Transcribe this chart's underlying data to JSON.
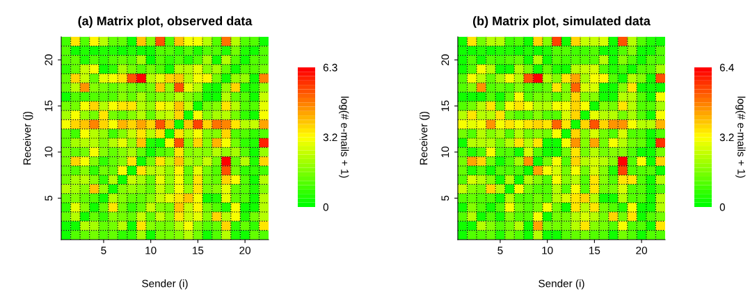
{
  "chart_data": [
    {
      "type": "heatmap",
      "title": "(a) Matrix plot, observed data",
      "xlabel": "Sender (i)",
      "ylabel": "Receiver (j)",
      "clabel": "log(# e-mails + 1)",
      "x": [
        1,
        2,
        3,
        4,
        5,
        6,
        7,
        8,
        9,
        10,
        11,
        12,
        13,
        14,
        15,
        16,
        17,
        18,
        19,
        20,
        21,
        22
      ],
      "y": [
        22,
        21,
        20,
        19,
        18,
        17,
        16,
        15,
        14,
        13,
        12,
        11,
        10,
        9,
        8,
        7,
        6,
        5,
        4,
        3,
        2,
        1
      ],
      "xlim": [
        0.5,
        22.5
      ],
      "ylim": [
        0.5,
        22.5
      ],
      "xticks": [
        5,
        10,
        15,
        20
      ],
      "yticks": [
        5,
        10,
        15,
        20
      ],
      "clim": [
        0,
        6.3
      ],
      "cticks": [
        0,
        {
          "value": 3.15,
          "label": "3.2"
        },
        6.3
      ],
      "colors": [
        "#00ff00",
        "#ffff00",
        "#ff0000"
      ],
      "line_style": "dotted",
      "cells": [
        [
          0.8,
          3.5,
          1,
          3.2,
          2.3,
          1.2,
          1.2,
          0.3,
          3.8,
          1.6,
          5.3,
          1,
          3.8,
          3,
          3,
          2.3,
          1,
          4.8,
          2.3,
          1,
          1,
          0.3
        ],
        [
          1,
          0.3,
          0.5,
          0.3,
          0.5,
          0.5,
          0.3,
          0.5,
          0.3,
          0.3,
          1,
          1,
          0.7,
          1,
          0.5,
          1,
          1,
          0.5,
          1.5,
          0.5,
          0.3,
          1
        ],
        [
          1,
          1.3,
          0.5,
          1,
          0.7,
          1,
          1.3,
          1,
          2,
          0,
          1,
          0.7,
          1,
          0.5,
          1,
          2,
          0.2,
          2.3,
          1,
          0.3,
          1,
          1
        ],
        [
          0.6,
          1.3,
          2.5,
          3,
          0.2,
          0.7,
          2,
          1.5,
          1,
          1.5,
          1,
          0.2,
          2.3,
          2.3,
          2.8,
          1.6,
          2,
          1.2,
          0.3,
          1,
          1,
          1.5
        ],
        [
          1.3,
          3.6,
          2.5,
          1.2,
          2.8,
          3,
          3.5,
          5.2,
          6.3,
          2.3,
          2.8,
          3.6,
          3.8,
          2.3,
          3,
          3.2,
          1.5,
          0.3,
          1.8,
          1.8,
          0.3,
          4.6
        ],
        [
          1.2,
          2.3,
          4.5,
          1.6,
          1.5,
          1.2,
          1.6,
          1.5,
          1.2,
          1.5,
          3.8,
          1.8,
          5.3,
          2.8,
          2.3,
          0.5,
          0.3,
          1.8,
          3.6,
          0.5,
          0.5,
          1.8
        ],
        [
          0.2,
          1,
          0.8,
          1,
          1,
          1,
          1.6,
          1.3,
          2,
          1.2,
          1.6,
          1.6,
          2.3,
          1.6,
          1.2,
          0.2,
          0.3,
          2.3,
          1.2,
          1,
          0.3,
          2.5
        ],
        [
          1.4,
          1.5,
          3,
          3.6,
          2.3,
          3,
          3.5,
          3.4,
          2.2,
          1.8,
          3.2,
          2.9,
          3.8,
          2.5,
          0.2,
          1.5,
          1.6,
          3.5,
          2.3,
          1,
          1,
          2.8
        ],
        [
          2,
          3,
          1.8,
          1.5,
          3.5,
          1.4,
          1.2,
          1.6,
          2.2,
          1.2,
          2.3,
          2.4,
          3.6,
          0.2,
          3,
          1.6,
          2,
          2.3,
          1.5,
          0.6,
          0.3,
          3
        ],
        [
          3,
          3.6,
          3.8,
          4.6,
          3.6,
          3,
          4,
          3.6,
          4.3,
          3.6,
          5.3,
          3.8,
          0.3,
          3.8,
          5.5,
          3.6,
          4.8,
          4.6,
          3.5,
          2.3,
          2.5,
          4.3
        ],
        [
          1.3,
          0.8,
          3,
          2.3,
          1.8,
          0.8,
          1.6,
          2.4,
          3.5,
          2.2,
          3.5,
          0.2,
          3.5,
          2.3,
          3,
          1.6,
          1.6,
          3.6,
          1,
          1,
          0.6,
          1
        ],
        [
          1.3,
          2,
          2.2,
          2.2,
          1.6,
          2.3,
          2.8,
          1.8,
          3.8,
          0.5,
          0.2,
          3,
          5.2,
          1.6,
          3.6,
          1.6,
          4,
          3,
          1.4,
          0.7,
          0.5,
          5.8
        ],
        [
          1.4,
          1.2,
          1.5,
          3,
          1.6,
          1.2,
          1.6,
          2,
          1.2,
          0.3,
          1,
          1.2,
          3.5,
          1.6,
          1.8,
          1.6,
          2.2,
          1.8,
          2,
          1,
          0.3,
          1.8
        ],
        [
          1.5,
          3.6,
          3,
          1.6,
          0.6,
          1.2,
          1.6,
          3.4,
          0.2,
          1.5,
          3.5,
          2.2,
          3.8,
          2,
          1.8,
          2.5,
          1.4,
          6.3,
          1.2,
          2.3,
          0.5,
          3.6
        ],
        [
          1.2,
          1,
          1.6,
          0.6,
          1.5,
          1.2,
          3,
          0.3,
          3.5,
          2.2,
          2.5,
          1.8,
          3.2,
          1.2,
          2.8,
          1.5,
          1,
          5.3,
          1.4,
          0.6,
          0.6,
          0.8
        ],
        [
          1.4,
          2,
          2.2,
          1.6,
          0.6,
          2.3,
          0.3,
          2.5,
          2,
          1.2,
          2.8,
          1.8,
          3,
          1.5,
          3.5,
          1.4,
          1.2,
          3.7,
          3,
          1,
          0.3,
          2.2
        ],
        [
          2.3,
          2,
          1.6,
          3.8,
          1.8,
          0.2,
          1.6,
          1.8,
          1.6,
          1.2,
          2.5,
          1.6,
          3,
          1.8,
          3.5,
          1.4,
          1.6,
          2.8,
          1.2,
          1,
          0.5,
          1.6
        ],
        [
          1.2,
          1.6,
          1.2,
          1,
          0.3,
          2.2,
          1.6,
          1.2,
          1.2,
          1.6,
          2.5,
          2.8,
          3.5,
          3.8,
          3,
          0.3,
          0.5,
          2.8,
          1.2,
          1,
          0.3,
          2.3
        ],
        [
          0.6,
          2.8,
          1.6,
          0.3,
          1.2,
          3.4,
          1.5,
          0.6,
          1.2,
          2.4,
          1.6,
          1.4,
          3.8,
          2.5,
          3.2,
          1.4,
          1,
          0.5,
          3,
          0.3,
          0.3,
          2.2
        ],
        [
          1.2,
          2.2,
          0.3,
          1.2,
          0.6,
          1.6,
          1.4,
          1.2,
          2.5,
          1.2,
          2.5,
          1.6,
          3.4,
          2.5,
          2.9,
          1.6,
          3.6,
          2.3,
          3,
          0.5,
          1.4,
          2.2
        ],
        [
          0.2,
          0.3,
          2.2,
          2,
          1.2,
          1.4,
          2.3,
          0.3,
          3.5,
          1.6,
          1.5,
          1.4,
          2.3,
          3,
          1.6,
          1,
          1.2,
          3.6,
          0.6,
          1.2,
          0.6,
          3.5
        ],
        [
          0.2,
          1,
          1.2,
          1.4,
          1,
          1.2,
          0.6,
          0.6,
          2,
          0.3,
          1.4,
          1.4,
          1.6,
          2.3,
          1.4,
          0.3,
          1,
          2.2,
          0.5,
          0.3,
          1.2,
          1
        ]
      ]
    },
    {
      "type": "heatmap",
      "title": "(b) Matrix plot, simulated data",
      "xlabel": "Sender (i)",
      "ylabel": "Receiver (j)",
      "clabel": "log(# e-mails + 1)",
      "x": [
        1,
        2,
        3,
        4,
        5,
        6,
        7,
        8,
        9,
        10,
        11,
        12,
        13,
        14,
        15,
        16,
        17,
        18,
        19,
        20,
        21,
        22
      ],
      "y": [
        22,
        21,
        20,
        19,
        18,
        17,
        16,
        15,
        14,
        13,
        12,
        11,
        10,
        9,
        8,
        7,
        6,
        5,
        4,
        3,
        2,
        1
      ],
      "xlim": [
        0.5,
        22.5
      ],
      "ylim": [
        0.5,
        22.5
      ],
      "xticks": [
        5,
        10,
        15,
        20
      ],
      "yticks": [
        5,
        10,
        15,
        20
      ],
      "clim": [
        0,
        6.4
      ],
      "cticks": [
        0,
        {
          "value": 3.2,
          "label": "3.2"
        },
        6.4
      ],
      "colors": [
        "#00ff00",
        "#ffff00",
        "#ff0000"
      ],
      "line_style": "dotted",
      "cells": [
        [
          0.2,
          3.5,
          1.5,
          2.3,
          2.3,
          0.8,
          1,
          0.2,
          3.6,
          1.6,
          5.6,
          0.3,
          3.8,
          2.5,
          2.5,
          2.8,
          0.3,
          5.2,
          2.3,
          1,
          0.6,
          0.2
        ],
        [
          0.2,
          0.3,
          0.6,
          0.3,
          0.6,
          0.6,
          0.3,
          0.6,
          0.3,
          0.6,
          1,
          1,
          0.8,
          0.8,
          1,
          0.3,
          0.3,
          1.2,
          1.6,
          0.3,
          0.3,
          1
        ],
        [
          0.2,
          1,
          0.3,
          1,
          0.8,
          1,
          1.4,
          0.3,
          2.3,
          0.2,
          1,
          0.8,
          1.2,
          1,
          1,
          2.2,
          0.3,
          1.6,
          1,
          0.3,
          1,
          1
        ],
        [
          0.3,
          1,
          3,
          2.4,
          0.2,
          0.3,
          2.2,
          1.5,
          0.2,
          1.4,
          0.6,
          0.3,
          2.3,
          2.5,
          2.8,
          1,
          0.6,
          0.8,
          0.3,
          1,
          1,
          2
        ],
        [
          1,
          3,
          2.4,
          1.4,
          2,
          3,
          2.4,
          5.2,
          6.4,
          2.2,
          1.6,
          3.5,
          4.3,
          2,
          3,
          3.2,
          1.2,
          0.3,
          2.2,
          1.6,
          0.3,
          5.2
        ],
        [
          1,
          1.6,
          4.6,
          1.2,
          1.4,
          1.2,
          1.6,
          1.2,
          1.2,
          1.4,
          3.5,
          1.6,
          5,
          2.8,
          2.8,
          0.3,
          0.3,
          1.6,
          3.5,
          0.3,
          0.3,
          0.3
        ],
        [
          0.2,
          0.3,
          0.3,
          1.2,
          0.3,
          1.4,
          3,
          1,
          1.5,
          1.5,
          1.2,
          1.6,
          3.6,
          1.6,
          1.6,
          0.3,
          0.3,
          2.2,
          2.3,
          1,
          0.3,
          3
        ],
        [
          1.2,
          1.5,
          2.3,
          3.5,
          1.4,
          3,
          3.5,
          3,
          2.3,
          2.3,
          3,
          3,
          3.6,
          3,
          0.2,
          1.6,
          1.5,
          3.5,
          2.3,
          1.2,
          1,
          2
        ],
        [
          2.2,
          3.5,
          2.4,
          2.4,
          3.4,
          1.5,
          1.2,
          1.2,
          1.6,
          1.2,
          1.2,
          2.8,
          3.6,
          0.2,
          2.9,
          2.2,
          2.2,
          1.5,
          2,
          1.2,
          0.3,
          3
        ],
        [
          3,
          2.9,
          3,
          4.5,
          3,
          3.5,
          3,
          3.4,
          3.6,
          3.5,
          5,
          3.5,
          0.2,
          3.6,
          5.3,
          3.6,
          4.6,
          4.5,
          3,
          2.3,
          2.2,
          4
        ],
        [
          1.5,
          1.2,
          2.2,
          1.6,
          2,
          1,
          2.2,
          1.5,
          1.6,
          1.5,
          3,
          0.2,
          3.6,
          1.6,
          2.8,
          1.5,
          1.2,
          2.8,
          1.2,
          1,
          0.3,
          1
        ],
        [
          0.2,
          2.3,
          2.3,
          2.2,
          1.5,
          2.2,
          3.4,
          2.3,
          3.5,
          0.2,
          0.3,
          3,
          4.5,
          1.6,
          4.2,
          1.5,
          3,
          2.2,
          1.5,
          1.4,
          0.3,
          5.8
        ],
        [
          1.2,
          0.6,
          1,
          3,
          1,
          1.2,
          0.3,
          2.8,
          1,
          0.3,
          0.3,
          1.5,
          3.5,
          1.5,
          2.2,
          1.5,
          1.6,
          1.6,
          1.2,
          0.3,
          0.3,
          1.5
        ],
        [
          1.5,
          4.3,
          3.6,
          1.5,
          0.3,
          1.2,
          2,
          4.5,
          0.2,
          1.5,
          3,
          1.2,
          3.6,
          2.3,
          2.8,
          2.2,
          1.6,
          6.4,
          1,
          3,
          0.3,
          3.6
        ],
        [
          1.4,
          0.6,
          1.2,
          0.3,
          1.2,
          1.2,
          1,
          0.3,
          4.3,
          3,
          2.8,
          1.5,
          3,
          1.5,
          2.8,
          1.6,
          0.6,
          5.4,
          1.2,
          1.2,
          1,
          0.3
        ],
        [
          1,
          2.8,
          2.2,
          1.6,
          0.3,
          2.3,
          0.3,
          2.4,
          1.6,
          1.2,
          3,
          1.6,
          2.3,
          1.2,
          3.5,
          1.6,
          1.2,
          3.5,
          3.5,
          1,
          0.3,
          2.3
        ],
        [
          2.5,
          1.6,
          1.5,
          3.6,
          2.2,
          0.2,
          3,
          1.5,
          1.2,
          1.2,
          2.3,
          1,
          3,
          1.2,
          3.5,
          1.5,
          1.5,
          2.8,
          1.2,
          1,
          0.3,
          1.2
        ],
        [
          1,
          1.4,
          1.2,
          1,
          0.3,
          2.2,
          1.2,
          1,
          1.5,
          1.2,
          2.4,
          2.8,
          3.4,
          3.8,
          2.3,
          0.3,
          0.3,
          2.4,
          1.2,
          1,
          0.3,
          2.2
        ],
        [
          0.3,
          1.6,
          1.2,
          0.3,
          1.2,
          3,
          1.5,
          1.2,
          1.5,
          3,
          1.5,
          0.3,
          3.5,
          2.4,
          3.4,
          1.5,
          1,
          0.6,
          3,
          0.3,
          0.3,
          2.2
        ],
        [
          1,
          2.2,
          0.3,
          1.2,
          0.3,
          1.6,
          1.2,
          1.2,
          3,
          0.3,
          1.5,
          1.5,
          2.4,
          2.8,
          2.2,
          1.5,
          3.6,
          1.5,
          3.5,
          0.3,
          1,
          1.5
        ],
        [
          0.2,
          0.3,
          2.3,
          1.6,
          1.2,
          1.5,
          2.2,
          0.3,
          4.3,
          1.5,
          1.5,
          1.5,
          2.4,
          3.4,
          1.6,
          1.5,
          1.2,
          3,
          1.2,
          1.2,
          0.3,
          3.5
        ],
        [
          0.3,
          1.2,
          1.2,
          1.4,
          0.6,
          1.5,
          1.2,
          0.3,
          2.2,
          0.2,
          0.3,
          1.2,
          1.4,
          1.5,
          1.2,
          1.2,
          0.3,
          1.5,
          1.2,
          0.3,
          1,
          1
        ]
      ]
    }
  ]
}
